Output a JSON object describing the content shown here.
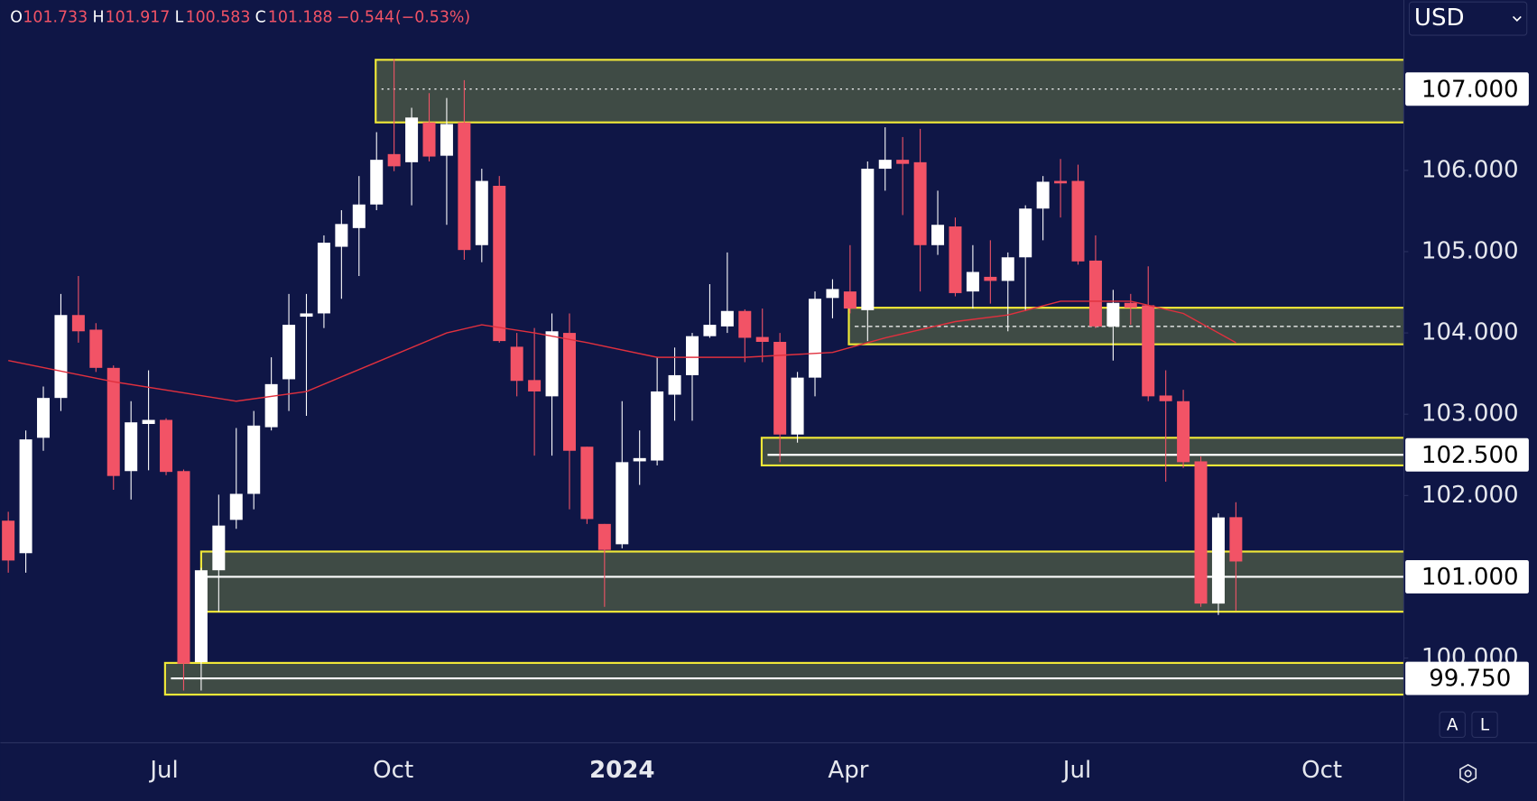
{
  "header": {
    "open_label": "O",
    "open": "101.733",
    "high_label": "H",
    "high": "101.917",
    "low_label": "L",
    "low": "100.583",
    "close_label": "C",
    "close": "101.188",
    "change": "−0.544",
    "change_pct": "(−0.53%)"
  },
  "currency": "USD",
  "buttons": [
    "A",
    "L"
  ],
  "chart_data": {
    "type": "candlestick",
    "up_color": "#ffffff",
    "down_color": "#f25366",
    "xlim": [
      -0.45,
      79.55
    ],
    "xticks": [
      {
        "value": 8.9,
        "label": "Jul"
      },
      {
        "value": 21.95,
        "label": "Oct"
      },
      {
        "value": 35,
        "label": "2024"
      },
      {
        "value": 47.9,
        "label": "Apr"
      },
      {
        "value": 60.95,
        "label": "Jul"
      },
      {
        "value": 74.9,
        "label": "Oct"
      }
    ],
    "ylim": [
      98.964,
      108.096
    ],
    "yticks": [
      {
        "value": 106,
        "label": "106.000"
      },
      {
        "value": 105,
        "label": "105.000"
      },
      {
        "value": 104,
        "label": "104.000"
      },
      {
        "value": 103,
        "label": "103.000"
      },
      {
        "value": 102,
        "label": "102.000"
      },
      {
        "value": 100,
        "label": "100.000"
      }
    ],
    "open": [
      101.69,
      101.29,
      102.71,
      103.2,
      104.22,
      104.04,
      103.57,
      102.3,
      102.88,
      102.93,
      102.3,
      99.95,
      101.08,
      101.7,
      102.02,
      102.84,
      103.43,
      104.2,
      104.24,
      105.06,
      105.29,
      105.58,
      106.2,
      106.1,
      106.59,
      106.18,
      106.59,
      105.08,
      105.81,
      103.83,
      103.42,
      103.22,
      104.0,
      102.6,
      101.65,
      101.4,
      102.42,
      102.43,
      103.24,
      103.48,
      103.96,
      104.08,
      104.27,
      103.95,
      103.89,
      102.75,
      103.45,
      104.43,
      104.51,
      104.28,
      106.02,
      106.13,
      106.1,
      105.08,
      105.31,
      104.51,
      104.69,
      104.64,
      104.93,
      105.53,
      105.87,
      105.87,
      104.89,
      104.08,
      104.37,
      104.34,
      103.23,
      103.16,
      102.42,
      100.67,
      101.733
    ],
    "high": [
      101.8,
      102.8,
      103.34,
      104.48,
      104.7,
      104.12,
      103.6,
      103.16,
      103.54,
      102.95,
      102.32,
      101.11,
      102.01,
      102.83,
      103.04,
      103.7,
      104.48,
      104.48,
      105.2,
      105.51,
      105.93,
      106.47,
      107.37,
      106.77,
      106.95,
      106.89,
      107.11,
      106.02,
      105.93,
      104.0,
      104.06,
      104.24,
      104.24,
      102.6,
      101.65,
      103.16,
      102.8,
      103.7,
      103.82,
      104.0,
      104.6,
      104.99,
      104.29,
      104.3,
      104.0,
      103.52,
      104.51,
      104.66,
      105.08,
      106.11,
      106.53,
      106.41,
      106.51,
      105.75,
      105.42,
      105.08,
      105.14,
      104.99,
      105.57,
      105.93,
      106.14,
      106.07,
      105.2,
      104.53,
      104.48,
      104.82,
      103.54,
      103.3,
      102.48,
      101.78,
      101.917
    ],
    "low": [
      101.05,
      101.05,
      102.55,
      103.04,
      103.88,
      103.52,
      102.07,
      101.95,
      102.31,
      102.25,
      99.6,
      99.6,
      100.57,
      101.59,
      101.83,
      102.8,
      103.04,
      102.98,
      104.06,
      104.42,
      104.7,
      105.51,
      105.99,
      105.57,
      106.11,
      105.33,
      104.9,
      104.87,
      103.88,
      103.22,
      102.49,
      102.49,
      101.83,
      101.65,
      100.63,
      101.35,
      102.13,
      102.37,
      102.92,
      102.92,
      103.94,
      104.0,
      103.64,
      103.64,
      102.41,
      102.65,
      103.22,
      104.18,
      104.24,
      103.9,
      105.75,
      105.45,
      104.51,
      104.96,
      104.45,
      104.3,
      104.36,
      104.02,
      104.27,
      105.14,
      105.42,
      104.84,
      104.06,
      103.66,
      104.1,
      103.16,
      102.17,
      102.34,
      100.63,
      100.53,
      100.583
    ],
    "close": [
      101.2,
      102.69,
      103.2,
      104.22,
      104.02,
      103.57,
      102.24,
      102.9,
      102.93,
      102.29,
      99.93,
      101.08,
      101.63,
      102.02,
      102.86,
      103.37,
      104.1,
      104.24,
      105.11,
      105.34,
      105.58,
      106.13,
      106.05,
      106.65,
      106.17,
      106.57,
      105.02,
      105.87,
      103.9,
      103.41,
      103.28,
      104.02,
      102.55,
      101.71,
      101.33,
      102.41,
      102.46,
      103.28,
      103.48,
      103.96,
      104.1,
      104.27,
      103.94,
      103.89,
      102.75,
      103.45,
      104.42,
      104.54,
      104.3,
      106.02,
      106.13,
      106.08,
      105.08,
      105.33,
      104.49,
      104.75,
      104.64,
      104.93,
      105.53,
      105.86,
      105.84,
      104.88,
      104.08,
      104.37,
      104.31,
      103.22,
      103.16,
      102.41,
      100.67,
      101.73,
      101.188
    ],
    "ma": {
      "color": "#e0303e",
      "x": [
        0,
        6,
        13,
        17,
        21,
        25,
        27,
        30,
        33,
        37,
        42,
        47,
        50,
        54,
        57,
        60,
        64,
        67,
        70
      ],
      "values": [
        103.66,
        103.4,
        103.16,
        103.28,
        103.64,
        104.0,
        104.1,
        104.0,
        103.88,
        103.7,
        103.7,
        103.76,
        103.94,
        104.14,
        104.22,
        104.39,
        104.39,
        104.24,
        103.88
      ]
    },
    "zones": [
      {
        "x0": 20.95,
        "low": 106.59,
        "high": 107.36,
        "level": 107,
        "label": "107.000",
        "style": "dotted"
      },
      {
        "x0": 47.93,
        "low": 103.86,
        "high": 104.31,
        "level": 104.08,
        "style": "dashed"
      },
      {
        "x0": 42.96,
        "low": 102.37,
        "high": 102.71,
        "level": 102.5,
        "label": "102.500",
        "style": "solid"
      },
      {
        "x0": 11.0,
        "low": 100.57,
        "high": 101.31,
        "level": 101,
        "label": "101.000",
        "style": "solid"
      },
      {
        "x0": 8.94,
        "low": 99.55,
        "high": 99.94,
        "level": 99.75,
        "label": "99.750",
        "style": "solid"
      }
    ],
    "zone_color": "#3f4b45",
    "zone_border": "#f0e838"
  }
}
